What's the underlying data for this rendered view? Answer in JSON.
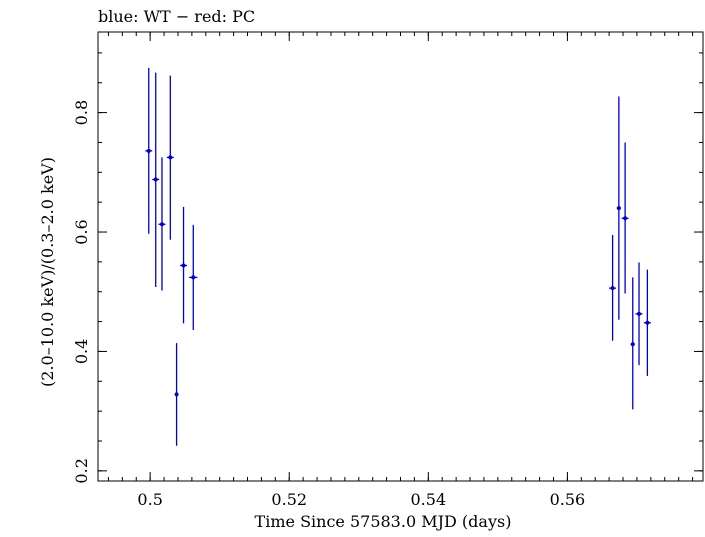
{
  "chart_data": {
    "type": "scatter",
    "title": "blue: WT − red: PC",
    "xlabel": "Time Since 57583.0 MJD (days)",
    "ylabel": "(2.0–10.0 keV)/(0.3–2.0 keV)",
    "xlim": [
      0.4925,
      0.5795
    ],
    "ylim": [
      0.183,
      0.935
    ],
    "xticks": [
      0.5,
      0.52,
      0.54,
      0.56
    ],
    "xtick_labels": [
      "0.5",
      "0.52",
      "0.54",
      "0.56"
    ],
    "yticks": [
      0.2,
      0.4,
      0.6,
      0.8
    ],
    "ytick_labels": [
      "0.2",
      "0.4",
      "0.6",
      "0.8"
    ],
    "grid": false,
    "series": [
      {
        "color": "#0000cc",
        "points": [
          {
            "x": 0.4998,
            "xerr": 0.0005,
            "y": 0.736,
            "ylo": 0.597,
            "yhi": 0.875
          },
          {
            "x": 0.5008,
            "xerr": 0.0005,
            "y": 0.688,
            "ylo": 0.508,
            "yhi": 0.867
          },
          {
            "x": 0.5017,
            "xerr": 0.0005,
            "y": 0.613,
            "ylo": 0.502,
            "yhi": 0.725
          },
          {
            "x": 0.5029,
            "xerr": 0.0005,
            "y": 0.725,
            "ylo": 0.587,
            "yhi": 0.862
          },
          {
            "x": 0.5038,
            "xerr": 0.0001,
            "y": 0.328,
            "ylo": 0.242,
            "yhi": 0.414
          },
          {
            "x": 0.5048,
            "xerr": 0.0005,
            "y": 0.544,
            "ylo": 0.447,
            "yhi": 0.642
          },
          {
            "x": 0.5062,
            "xerr": 0.0006,
            "y": 0.524,
            "ylo": 0.436,
            "yhi": 0.612
          },
          {
            "x": 0.5665,
            "xerr": 0.0005,
            "y": 0.506,
            "ylo": 0.418,
            "yhi": 0.595
          },
          {
            "x": 0.5674,
            "xerr": 0.0003,
            "y": 0.64,
            "ylo": 0.453,
            "yhi": 0.827
          },
          {
            "x": 0.5683,
            "xerr": 0.0005,
            "y": 0.623,
            "ylo": 0.497,
            "yhi": 0.75
          },
          {
            "x": 0.5694,
            "xerr": 0.0003,
            "y": 0.412,
            "ylo": 0.303,
            "yhi": 0.524
          },
          {
            "x": 0.5703,
            "xerr": 0.0005,
            "y": 0.463,
            "ylo": 0.377,
            "yhi": 0.549
          },
          {
            "x": 0.5715,
            "xerr": 0.0005,
            "y": 0.448,
            "ylo": 0.359,
            "yhi": 0.537
          }
        ]
      }
    ]
  }
}
